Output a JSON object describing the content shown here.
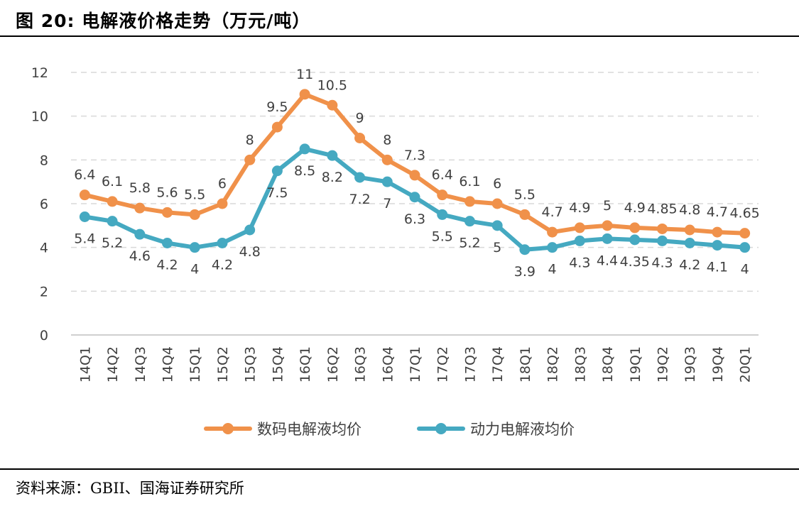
{
  "figure": {
    "title": "图 20:  电解液价格走势（万元/吨）",
    "source": "资料来源：GBII、国海证券研究所"
  },
  "chart_data": {
    "type": "line",
    "title": "",
    "xlabel": "",
    "ylabel": "",
    "categories": [
      "14Q1",
      "14Q2",
      "14Q3",
      "14Q4",
      "15Q1",
      "15Q2",
      "15Q3",
      "15Q4",
      "16Q1",
      "16Q2",
      "16Q3",
      "16Q4",
      "17Q1",
      "17Q2",
      "17Q3",
      "17Q4",
      "18Q1",
      "18Q2",
      "18Q3",
      "18Q4",
      "19Q1",
      "19Q2",
      "19Q3",
      "19Q4",
      "20Q1"
    ],
    "ylim": [
      0,
      12
    ],
    "yticks": [
      0,
      2,
      4,
      6,
      8,
      10,
      12
    ],
    "grid": true,
    "legend_position": "bottom",
    "series": [
      {
        "name": "数码电解液均价",
        "color": "#F0914A",
        "values": [
          6.4,
          6.1,
          5.8,
          5.6,
          5.5,
          6,
          8,
          9.5,
          11,
          10.5,
          9,
          8,
          7.3,
          6.4,
          6.1,
          6,
          5.5,
          4.7,
          4.9,
          5,
          4.9,
          4.85,
          4.8,
          4.7,
          4.65
        ],
        "label_position": "above"
      },
      {
        "name": "动力电解液均价",
        "color": "#45A9C1",
        "values": [
          5.4,
          5.2,
          4.6,
          4.2,
          4,
          4.2,
          4.8,
          7.5,
          8.5,
          8.2,
          7.2,
          7,
          6.3,
          5.5,
          5.2,
          5,
          3.9,
          4,
          4.3,
          4.4,
          4.35,
          4.3,
          4.2,
          4.1,
          4
        ],
        "label_position": "below"
      }
    ]
  }
}
